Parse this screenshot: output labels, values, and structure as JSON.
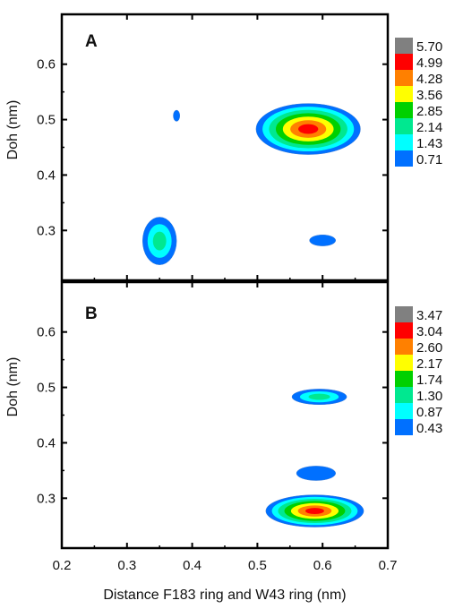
{
  "figure": {
    "xlabel": "Distance F183 ring and W43 ring (nm)",
    "xticks": [
      "0.2",
      "0.3",
      "0.4",
      "0.5",
      "0.6",
      "0.7"
    ]
  },
  "chart_data": [
    {
      "type": "heatmap",
      "panel_label": "A",
      "ylabel": "Doh (nm)",
      "xlim": [
        0.2,
        0.7
      ],
      "ylim": [
        0.21,
        0.69
      ],
      "yticks": [
        "0.3",
        "0.4",
        "0.5",
        "0.6"
      ],
      "colorbar": {
        "levels": [
          "5.70",
          "4.99",
          "4.28",
          "3.56",
          "2.85",
          "2.14",
          "1.43",
          "0.71"
        ],
        "colors": [
          "#808080",
          "#ff0000",
          "#ff8000",
          "#ffff00",
          "#00d000",
          "#00e890",
          "#00ffff",
          "#0070ff"
        ]
      },
      "clusters": [
        {
          "x": 0.578,
          "y": 0.483,
          "rx": 0.08,
          "ry": 0.046,
          "peak_level": 1
        },
        {
          "x": 0.35,
          "y": 0.281,
          "rx": 0.026,
          "ry": 0.043,
          "peak_level": 5
        },
        {
          "x": 0.376,
          "y": 0.507,
          "rx": 0.005,
          "ry": 0.01,
          "peak_level": 7
        },
        {
          "x": 0.6,
          "y": 0.282,
          "rx": 0.02,
          "ry": 0.01,
          "peak_level": 7
        }
      ]
    },
    {
      "type": "heatmap",
      "panel_label": "B",
      "ylabel": "Doh (nm)",
      "xlim": [
        0.2,
        0.7
      ],
      "ylim": [
        0.21,
        0.69
      ],
      "yticks": [
        "0.3",
        "0.4",
        "0.5",
        "0.6"
      ],
      "colorbar": {
        "levels": [
          "3.47",
          "3.04",
          "2.60",
          "2.17",
          "1.74",
          "1.30",
          "0.87",
          "0.43"
        ],
        "colors": [
          "#808080",
          "#ff0000",
          "#ff8000",
          "#ffff00",
          "#00d000",
          "#00e890",
          "#00ffff",
          "#0070ff"
        ]
      },
      "clusters": [
        {
          "x": 0.588,
          "y": 0.277,
          "rx": 0.075,
          "ry": 0.029,
          "peak_level": 1
        },
        {
          "x": 0.595,
          "y": 0.483,
          "rx": 0.042,
          "ry": 0.014,
          "peak_level": 5
        },
        {
          "x": 0.59,
          "y": 0.345,
          "rx": 0.03,
          "ry": 0.013,
          "peak_level": 7
        }
      ]
    }
  ]
}
